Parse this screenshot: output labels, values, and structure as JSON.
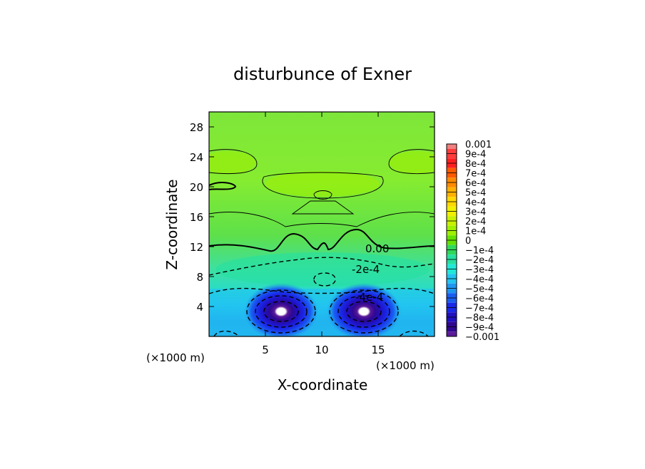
{
  "chart_data": {
    "type": "heatmap",
    "title": "disturbunce of Exner",
    "xlabel": "X-coordinate",
    "ylabel": "Z-coordinate",
    "x_unit": "(×1000 m)",
    "y_unit": "(×1000 m)",
    "xlim": [
      0,
      20
    ],
    "ylim": [
      0,
      30
    ],
    "x_ticks": [
      5,
      10,
      15
    ],
    "y_ticks": [
      4,
      8,
      12,
      16,
      20,
      24,
      28
    ],
    "grid": false,
    "colorbar": {
      "placement": "right",
      "labels": [
        "0.001",
        "9e-4",
        "8e-4",
        "7e-4",
        "6e-4",
        "5e-4",
        "4e-4",
        "3e-4",
        "2e-4",
        "1e-4",
        "0",
        "−1e-4",
        "−2e-4",
        "−3e-4",
        "−4e-4",
        "−5e-4",
        "−6e-4",
        "−7e-4",
        "−8e-4",
        "−9e-4",
        "−0.001"
      ],
      "colors": [
        "#f08080",
        "#ff3b3b",
        "#ff1f1f",
        "#ff5a00",
        "#ff8a00",
        "#ffb000",
        "#ffd800",
        "#f0f000",
        "#c8f000",
        "#9ef000",
        "#62e000",
        "#30d85a",
        "#25e0a0",
        "#20e8d8",
        "#22c4f0",
        "#1e96f0",
        "#1a5ef0",
        "#1a28e8",
        "#2010c0",
        "#300890",
        "#5a1a9a"
      ]
    },
    "contour_labels": [
      {
        "text": "0.00",
        "x": 12.1,
        "z": 12.3
      },
      {
        "text": "-2e-4",
        "x": 14.6,
        "z": 9.3
      },
      {
        "text": "-4e-4",
        "x": 14.3,
        "z": 5.4
      }
    ],
    "minima": [
      {
        "x": 6.4,
        "z": 3.3,
        "value": -0.001
      },
      {
        "x": 13.6,
        "z": 3.3,
        "value": -0.001
      }
    ]
  }
}
